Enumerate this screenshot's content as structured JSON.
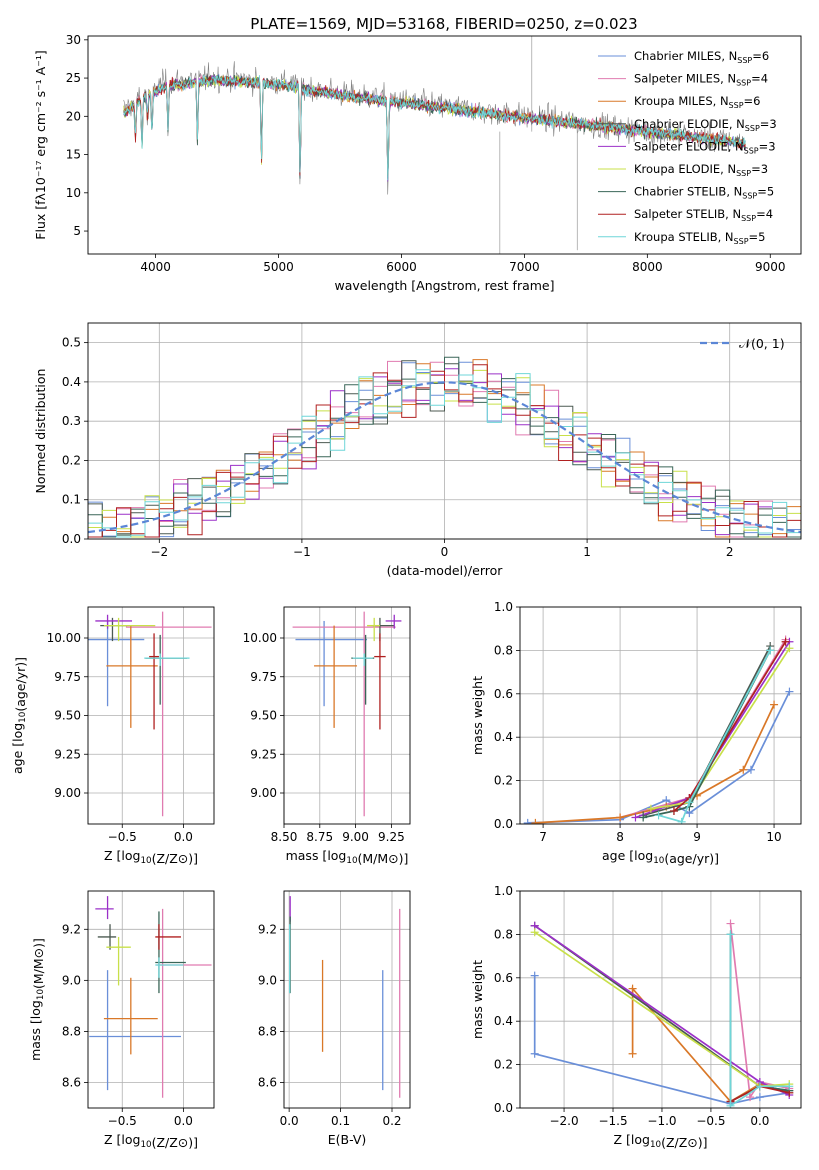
{
  "figure": {
    "title": "PLATE=1569, MJD=53168, FIBERID=0250, z=0.023"
  },
  "models": [
    {
      "name": "Chabrier MILES",
      "nssp": "6",
      "color": "#6a8fd8"
    },
    {
      "name": "Salpeter MILES",
      "nssp": "4",
      "color": "#e07bb0"
    },
    {
      "name": "Kroupa MILES",
      "nssp": "6",
      "color": "#d97828"
    },
    {
      "name": "Chabrier ELODIE",
      "nssp": "3",
      "color": "#4c5a52"
    },
    {
      "name": "Salpeter ELODIE",
      "nssp": "3",
      "color": "#9b30c8"
    },
    {
      "name": "Kroupa ELODIE",
      "nssp": "3",
      "color": "#c8e04a"
    },
    {
      "name": "Chabrier STELIB",
      "nssp": "5",
      "color": "#3a6658"
    },
    {
      "name": "Salpeter STELIB",
      "nssp": "4",
      "color": "#b02020"
    },
    {
      "name": "Kroupa STELIB",
      "nssp": "5",
      "color": "#6fd6d8"
    }
  ],
  "chart_data": [
    {
      "id": "spectrum",
      "type": "line",
      "title": "PLATE=1569, MJD=53168, FIBERID=0250, z=0.023",
      "xlabel": "wavelength [Angstrom, rest frame]",
      "ylabel": "Flux [fλ10⁻¹⁷ erg cm⁻² s⁻¹ A⁻¹]",
      "xlim": [
        3450,
        9250
      ],
      "ylim": [
        2,
        30.5
      ],
      "xticks": [
        4000,
        5000,
        6000,
        7000,
        8000,
        9000
      ],
      "yticks": [
        5,
        10,
        15,
        20,
        25,
        30
      ],
      "grid": false,
      "legend": "upper right",
      "observed_continuum": [
        [
          3750,
          21
        ],
        [
          3900,
          23
        ],
        [
          4100,
          24.5
        ],
        [
          4500,
          25
        ],
        [
          5000,
          24.5
        ],
        [
          5500,
          23
        ],
        [
          6000,
          22
        ],
        [
          6500,
          21
        ],
        [
          7000,
          20
        ],
        [
          7500,
          19
        ],
        [
          8000,
          18
        ],
        [
          8500,
          17.2
        ],
        [
          8800,
          16.5
        ]
      ],
      "model_continuum": [
        [
          3750,
          20.5
        ],
        [
          3900,
          22.5
        ],
        [
          4100,
          24
        ],
        [
          4500,
          24.8
        ],
        [
          5000,
          24.2
        ],
        [
          5500,
          22.8
        ],
        [
          6000,
          21.8
        ],
        [
          6500,
          20.8
        ],
        [
          7000,
          19.8
        ],
        [
          7500,
          18.9
        ],
        [
          8000,
          18
        ],
        [
          8500,
          17.1
        ],
        [
          8800,
          16.4
        ]
      ]
    },
    {
      "id": "residuals",
      "type": "step",
      "xlabel": "(data-model)/error",
      "ylabel": "Normed distribution",
      "xlim": [
        -2.5,
        2.5
      ],
      "ylim": [
        0,
        0.55
      ],
      "xticks": [
        -2,
        -1,
        0,
        1,
        2
      ],
      "yticks": [
        0.0,
        0.1,
        0.2,
        0.3,
        0.4,
        0.5
      ],
      "grid": true,
      "legend": "upper right",
      "reference_label": "𝒩(0, 1)",
      "reference_color": "#5b86d6",
      "bin_width": 0.1
    },
    {
      "id": "age_vs_Z",
      "type": "errorbar",
      "xlabel": "Z [log10(Z/Z⊙)]",
      "ylabel": "age  [log10(age/yr)]",
      "xlim": [
        -0.78,
        0.25
      ],
      "ylim": [
        8.8,
        10.2
      ],
      "xticks": [
        -0.5,
        0.0
      ],
      "yticks": [
        9.0,
        9.25,
        9.5,
        9.75,
        10.0
      ],
      "grid": true,
      "points": [
        {
          "model": 0,
          "x": -0.62,
          "xerr": [
            0.2,
            0.3
          ],
          "y": 9.99,
          "yerr": [
            0.43,
            0.12
          ]
        },
        {
          "model": 1,
          "x": -0.17,
          "xerr": [
            0.3,
            0.4
          ],
          "y": 10.07,
          "yerr": [
            1.22,
            0.1
          ]
        },
        {
          "model": 2,
          "x": -0.43,
          "xerr": [
            0.2,
            0.22
          ],
          "y": 9.82,
          "yerr": [
            0.4,
            0.26
          ]
        },
        {
          "model": 3,
          "x": -0.58,
          "xerr": [
            0.1,
            0.12
          ],
          "y": 10.08,
          "yerr": [
            0.1,
            0.05
          ]
        },
        {
          "model": 4,
          "x": -0.62,
          "xerr": [
            0.1,
            0.2
          ],
          "y": 10.11,
          "yerr": [
            0.05,
            0.04
          ]
        },
        {
          "model": 5,
          "x": -0.53,
          "xerr": [
            0.12,
            0.3
          ],
          "y": 10.08,
          "yerr": [
            0.1,
            0.05
          ]
        },
        {
          "model": 6,
          "x": -0.19,
          "xerr": [
            0.12,
            0.22
          ],
          "y": 9.87,
          "yerr": [
            0.3,
            0.15
          ]
        },
        {
          "model": 7,
          "x": -0.24,
          "xerr": [
            0.04,
            0.04
          ],
          "y": 9.88,
          "yerr": [
            0.47,
            0.15
          ]
        },
        {
          "model": 8,
          "x": -0.19,
          "xerr": [
            0.13,
            0.24
          ],
          "y": 9.87,
          "yerr": [
            0.05,
            0.03
          ]
        }
      ]
    },
    {
      "id": "age_vs_mass",
      "type": "errorbar",
      "xlabel": "mass [log10(M/M⊙)]",
      "ylabel": "",
      "xlim": [
        8.5,
        9.38
      ],
      "ylim": [
        8.8,
        10.2
      ],
      "xticks": [
        8.5,
        8.75,
        9.0,
        9.25
      ],
      "yticks": [
        9.0,
        9.25,
        9.5,
        9.75,
        10.0
      ],
      "grid": true,
      "points": [
        {
          "model": 0,
          "x": 8.78,
          "xerr": [
            0.2,
            0.3
          ],
          "y": 9.99,
          "yerr": [
            0.43,
            0.12
          ]
        },
        {
          "model": 1,
          "x": 9.06,
          "xerr": [
            0.5,
            0.22
          ],
          "y": 10.07,
          "yerr": [
            1.22,
            0.1
          ]
        },
        {
          "model": 2,
          "x": 8.85,
          "xerr": [
            0.14,
            0.16
          ],
          "y": 9.82,
          "yerr": [
            0.4,
            0.26
          ]
        },
        {
          "model": 3,
          "x": 9.17,
          "xerr": [
            0.05,
            0.1
          ],
          "y": 10.08,
          "yerr": [
            0.1,
            0.05
          ]
        },
        {
          "model": 4,
          "x": 9.27,
          "xerr": [
            0.06,
            0.05
          ],
          "y": 10.11,
          "yerr": [
            0.05,
            0.04
          ]
        },
        {
          "model": 5,
          "x": 9.13,
          "xerr": [
            0.05,
            0.04
          ],
          "y": 10.08,
          "yerr": [
            0.1,
            0.05
          ]
        },
        {
          "model": 6,
          "x": 9.07,
          "xerr": [
            0.1,
            0.06
          ],
          "y": 9.87,
          "yerr": [
            0.3,
            0.15
          ]
        },
        {
          "model": 7,
          "x": 9.17,
          "xerr": [
            0.04,
            0.04
          ],
          "y": 9.88,
          "yerr": [
            0.47,
            0.15
          ]
        },
        {
          "model": 8,
          "x": 9.06,
          "xerr": [
            0.08,
            0.06
          ],
          "y": 9.87,
          "yerr": [
            0.05,
            0.03
          ]
        }
      ]
    },
    {
      "id": "weight_vs_age",
      "type": "line",
      "xlabel": "age  [log10(age/yr)]",
      "ylabel": "mass weight",
      "xlim": [
        6.7,
        10.35
      ],
      "ylim": [
        0,
        1.0
      ],
      "xticks": [
        7,
        8,
        9,
        10
      ],
      "yticks": [
        0.0,
        0.2,
        0.4,
        0.6,
        0.8,
        1.0
      ],
      "grid": true,
      "series": [
        {
          "model": 0,
          "x": [
            6.8,
            8.0,
            8.6,
            8.9,
            9.7,
            10.2
          ],
          "y": [
            0.005,
            0.02,
            0.11,
            0.05,
            0.25,
            0.61
          ]
        },
        {
          "model": 1,
          "x": [
            8.0,
            8.9,
            10.15
          ],
          "y": [
            0.03,
            0.12,
            0.85
          ]
        },
        {
          "model": 2,
          "x": [
            6.9,
            8.0,
            8.6,
            9.0,
            9.6,
            10.0
          ],
          "y": [
            0.005,
            0.03,
            0.08,
            0.13,
            0.25,
            0.55
          ]
        },
        {
          "model": 3,
          "x": [
            8.3,
            8.9,
            9.95
          ],
          "y": [
            0.04,
            0.1,
            0.82
          ]
        },
        {
          "model": 4,
          "x": [
            8.2,
            8.9,
            10.2
          ],
          "y": [
            0.03,
            0.12,
            0.84
          ]
        },
        {
          "model": 5,
          "x": [
            8.4,
            8.9,
            10.2
          ],
          "y": [
            0.07,
            0.1,
            0.81
          ]
        },
        {
          "model": 6,
          "x": [
            8.3,
            8.7,
            8.9,
            9.95
          ],
          "y": [
            0.03,
            0.06,
            0.08,
            0.8
          ]
        },
        {
          "model": 7,
          "x": [
            8.7,
            8.9,
            10.15
          ],
          "y": [
            0.06,
            0.12,
            0.84
          ]
        },
        {
          "model": 8,
          "x": [
            8.5,
            8.8,
            8.9,
            9.95
          ],
          "y": [
            0.04,
            0.01,
            0.1,
            0.8
          ]
        }
      ]
    },
    {
      "id": "mass_vs_Z",
      "type": "errorbar",
      "xlabel": "Z [log10(Z/Z⊙)]",
      "ylabel": "mass [log10(M/M⊙)]",
      "xlim": [
        -0.78,
        0.25
      ],
      "ylim": [
        8.5,
        9.35
      ],
      "xticks": [
        -0.5,
        0.0
      ],
      "yticks": [
        8.6,
        8.8,
        9.0,
        9.2
      ],
      "grid": true,
      "points": [
        {
          "model": 0,
          "x": -0.62,
          "xerr": [
            0.15,
            0.6
          ],
          "y": 8.78,
          "yerr": [
            0.21,
            0.26
          ]
        },
        {
          "model": 1,
          "x": -0.17,
          "xerr": [
            0.05,
            0.4
          ],
          "y": 9.06,
          "yerr": [
            0.52,
            0.22
          ]
        },
        {
          "model": 2,
          "x": -0.43,
          "xerr": [
            0.22,
            0.22
          ],
          "y": 8.85,
          "yerr": [
            0.14,
            0.16
          ]
        },
        {
          "model": 3,
          "x": -0.6,
          "xerr": [
            0.1,
            0.05
          ],
          "y": 9.17,
          "yerr": [
            0.05,
            0.05
          ]
        },
        {
          "model": 4,
          "x": -0.62,
          "xerr": [
            0.1,
            0.05
          ],
          "y": 9.28,
          "yerr": [
            0.04,
            0.05
          ]
        },
        {
          "model": 5,
          "x": -0.53,
          "xerr": [
            0.1,
            0.1
          ],
          "y": 9.13,
          "yerr": [
            0.15,
            0.04
          ]
        },
        {
          "model": 6,
          "x": -0.2,
          "xerr": [
            0.03,
            0.22
          ],
          "y": 9.07,
          "yerr": [
            0.12,
            0.2
          ]
        },
        {
          "model": 7,
          "x": -0.2,
          "xerr": [
            0.03,
            0.18
          ],
          "y": 9.17,
          "yerr": [
            0.05,
            0.05
          ]
        },
        {
          "model": 8,
          "x": -0.2,
          "xerr": [
            0.03,
            0.2
          ],
          "y": 9.06,
          "yerr": [
            0.05,
            0.03
          ]
        }
      ]
    },
    {
      "id": "mass_vs_ebv",
      "type": "errorbar",
      "xlabel": "E(B-V)",
      "ylabel": "",
      "xlim": [
        -0.01,
        0.235
      ],
      "ylim": [
        8.5,
        9.35
      ],
      "xticks": [
        0.0,
        0.1,
        0.2
      ],
      "yticks": [
        8.6,
        8.8,
        9.0,
        9.2
      ],
      "grid": true,
      "points": [
        {
          "model": 0,
          "x": 0.182,
          "xerr": [
            0,
            0
          ],
          "y": 8.78,
          "yerr": [
            0.21,
            0.26
          ]
        },
        {
          "model": 1,
          "x": 0.215,
          "xerr": [
            0,
            0
          ],
          "y": 9.06,
          "yerr": [
            0.52,
            0.22
          ]
        },
        {
          "model": 2,
          "x": 0.065,
          "xerr": [
            0,
            0
          ],
          "y": 8.9,
          "yerr": [
            0.18,
            0.18
          ]
        },
        {
          "model": 4,
          "x": 0.002,
          "xerr": [
            0,
            0
          ],
          "y": 9.28,
          "yerr": [
            0.05,
            0.05
          ]
        },
        {
          "model": 6,
          "x": 0.002,
          "xerr": [
            0,
            0
          ],
          "y": 9.07,
          "yerr": [
            0.12,
            0.18
          ]
        },
        {
          "model": 8,
          "x": 0.001,
          "xerr": [
            0,
            0
          ],
          "y": 9.1,
          "yerr": [
            0.15,
            0.12
          ]
        }
      ]
    },
    {
      "id": "weight_vs_Z",
      "type": "line",
      "xlabel": "Z [log10(Z/Z⊙)]",
      "ylabel": "mass weight",
      "xlim": [
        -2.45,
        0.42
      ],
      "ylim": [
        0,
        1.0
      ],
      "xticks": [
        -2.0,
        -1.5,
        -1.0,
        -0.5,
        0.0
      ],
      "yticks": [
        0.0,
        0.2,
        0.4,
        0.6,
        0.8,
        1.0
      ],
      "grid": true,
      "series": [
        {
          "model": 0,
          "x": [
            -2.3,
            -2.3,
            -0.3,
            0.0,
            0.3
          ],
          "y": [
            0.61,
            0.25,
            0.02,
            0.05,
            0.07
          ]
        },
        {
          "model": 1,
          "x": [
            -0.3,
            -0.1,
            0.0,
            0.3
          ],
          "y": [
            0.85,
            0.05,
            0.12,
            0.09
          ]
        },
        {
          "model": 2,
          "x": [
            -1.3,
            -1.3,
            -0.3,
            0.0,
            0.3
          ],
          "y": [
            0.25,
            0.55,
            0.03,
            0.11,
            0.07
          ]
        },
        {
          "model": 3,
          "x": [
            -2.3,
            0.0,
            0.3
          ],
          "y": [
            0.84,
            0.1,
            0.08
          ]
        },
        {
          "model": 4,
          "x": [
            -2.3,
            0.0,
            0.3
          ],
          "y": [
            0.84,
            0.12,
            0.06
          ]
        },
        {
          "model": 5,
          "x": [
            -2.3,
            0.0,
            0.3
          ],
          "y": [
            0.81,
            0.1,
            0.11
          ]
        },
        {
          "model": 6,
          "x": [
            -0.3,
            -0.3,
            0.0,
            0.3
          ],
          "y": [
            0.8,
            0.03,
            0.1,
            0.08
          ]
        },
        {
          "model": 7,
          "x": [
            -0.3,
            0.0,
            0.3
          ],
          "y": [
            0.03,
            0.1,
            0.07
          ]
        },
        {
          "model": 8,
          "x": [
            -0.3,
            -0.3,
            0.0,
            0.3
          ],
          "y": [
            0.8,
            0.01,
            0.1,
            0.1
          ]
        }
      ]
    }
  ]
}
